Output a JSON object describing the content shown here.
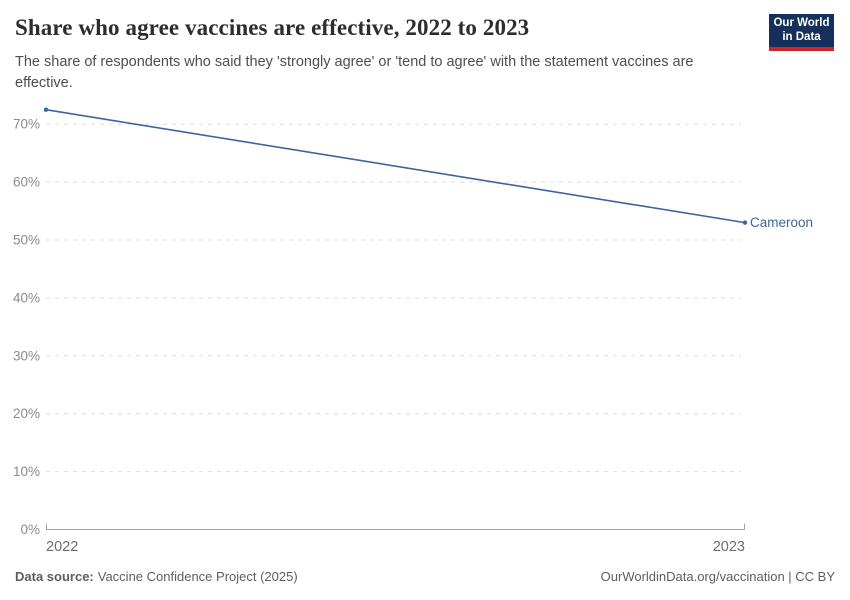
{
  "header": {
    "logo": {
      "line1": "Our World",
      "line2": "in Data"
    }
  },
  "chart_data": {
    "type": "line",
    "title": "Share who agree vaccines are effective, 2022 to 2023",
    "subtitle": "The share of respondents who said they 'strongly agree' or 'tend to agree' with the statement vaccines are effective.",
    "x": [
      2022,
      2023
    ],
    "series": [
      {
        "name": "Cameroon",
        "values": [
          72.5,
          53
        ],
        "color": "#3d649f"
      }
    ],
    "xlabel": "",
    "ylabel": "",
    "ylim": [
      0,
      75
    ],
    "yticks": [
      0,
      10,
      20,
      30,
      40,
      50,
      60,
      70
    ],
    "ytick_suffix": "%",
    "grid": true,
    "legend_position": "line-end-label"
  },
  "footer": {
    "datasource_label": "Data source:",
    "datasource_value": "Vaccine Confidence Project (2025)",
    "link": "OurWorldinData.org/vaccination | CC BY"
  },
  "colors": {
    "line": "#3d649f",
    "grid": "#dedede",
    "axis": "#a3a3a3",
    "tick_label": "#8b8b8b",
    "year_label": "#6d6d6d",
    "title": "#2d2d2d",
    "subtitle": "#4e4e4e",
    "footer_text": "#5e5e5e",
    "logo_bg": "#15315b",
    "logo_bar": "#cc2428"
  }
}
